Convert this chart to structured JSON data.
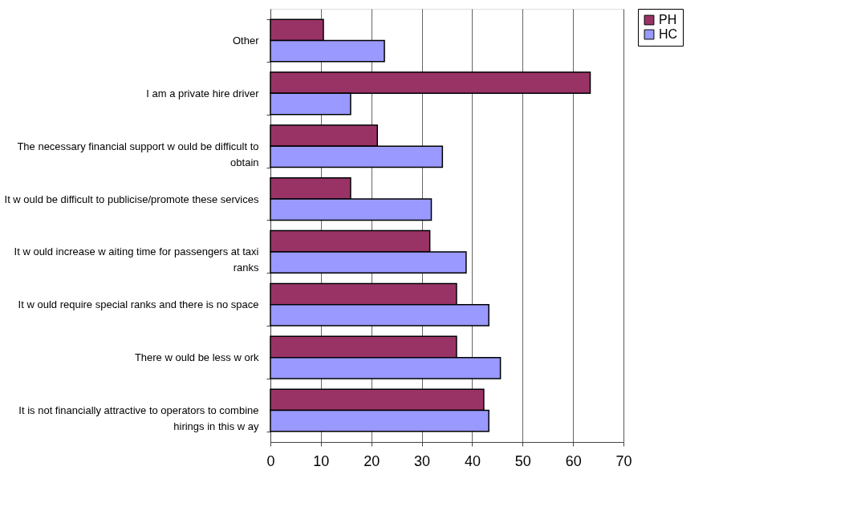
{
  "chart_data": {
    "type": "bar",
    "orientation": "horizontal",
    "categories": [
      "Other",
      "I am a private hire driver",
      "The necessary financial support w ould be difficult to obtain",
      "It w ould be difficult to publicise/promote these services",
      "It w ould increase w aiting time for passengers at taxi ranks",
      "It w ould require special ranks and there is no space",
      "There w ould be less w ork",
      "It is not financially attractive to operators to combine hirings in this w ay"
    ],
    "series": [
      {
        "name": "PH",
        "color": "#993366",
        "values": [
          10.5,
          63.4,
          21.2,
          15.9,
          31.6,
          36.9,
          36.9,
          42.3
        ]
      },
      {
        "name": "HC",
        "color": "#9999ff",
        "values": [
          22.6,
          15.9,
          34.1,
          31.9,
          38.8,
          43.3,
          45.6,
          43.3
        ]
      }
    ],
    "xlim": [
      0,
      70
    ],
    "xticks": [
      0,
      10,
      20,
      30,
      40,
      50,
      60,
      70
    ],
    "grid": "x",
    "legend": "right"
  }
}
